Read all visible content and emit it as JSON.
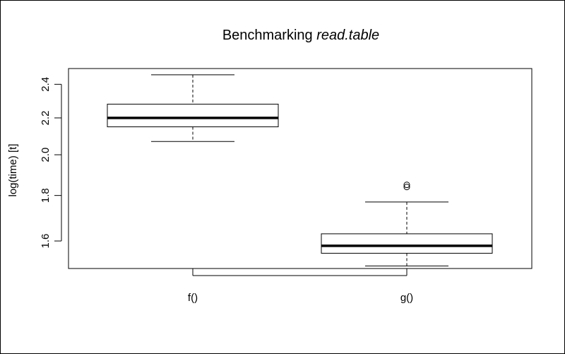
{
  "chart_data": {
    "type": "boxplot",
    "title_prefix": "Benchmarking ",
    "title_emphasis": "read.table",
    "xlabel": "",
    "ylabel": "log(time) [t]",
    "y_scale": "log",
    "ylim": [
      1.49,
      2.5
    ],
    "y_ticks": [
      1.6,
      1.8,
      2.0,
      2.2,
      2.4
    ],
    "y_tick_labels": [
      "1.6",
      "1.8",
      "2.0",
      "2.2",
      "2.4"
    ],
    "categories": [
      "f()",
      "g()"
    ],
    "boxes": [
      {
        "name": "f()",
        "whisker_low": 2.07,
        "q1": 2.15,
        "median": 2.2,
        "q3": 2.28,
        "whisker_high": 2.46,
        "outliers": []
      },
      {
        "name": "g()",
        "whisker_low": 1.5,
        "q1": 1.55,
        "median": 1.58,
        "q3": 1.63,
        "whisker_high": 1.77,
        "outliers": [
          1.84,
          1.85
        ]
      }
    ]
  }
}
